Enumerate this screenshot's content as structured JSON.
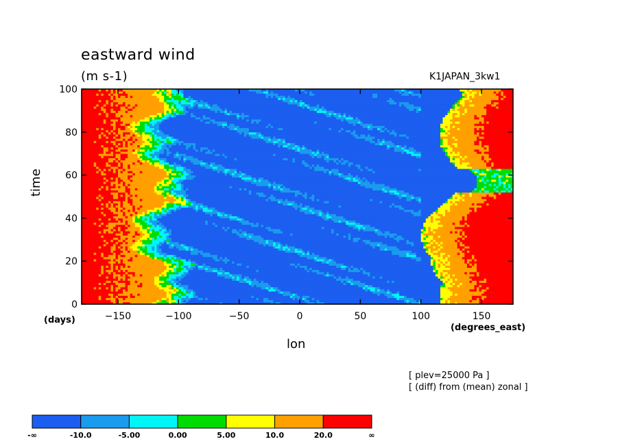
{
  "chart_data": {
    "type": "heatmap",
    "title": "eastward wind",
    "units": "(m s-1)",
    "dataset": "K1JAPAN_3kw1",
    "xlabel": "lon",
    "ylabel": "time",
    "x_units": "(degrees_east)",
    "y_units": "(days)",
    "xlim": [
      -180,
      176
    ],
    "ylim": [
      0,
      100
    ],
    "x_ticks": [
      -150,
      -100,
      -50,
      0,
      50,
      100,
      150
    ],
    "y_ticks": [
      0,
      20,
      40,
      60,
      80,
      100
    ],
    "notes": [
      "[ plev=25000 Pa ]",
      "[ (diff) from (mean) zonal ]"
    ],
    "colorbar": {
      "levels": [
        "-∞",
        "-10.0",
        "-5.00",
        "0.00",
        "5.00",
        "10.0",
        "20.0",
        "∞"
      ],
      "colors": [
        "#1b5ef0",
        "#1a9bee",
        "#00f5f5",
        "#00dc00",
        "#ffff00",
        "#ffa000",
        "#ff0000"
      ]
    },
    "field_pattern": [
      {
        "lon_range": [
          -180,
          -130
        ],
        "band": "red/orange (strong westerly anomaly)"
      },
      {
        "lon_range": [
          -110,
          90
        ],
        "band": "blue (easterly anomaly)"
      },
      {
        "lon_range": [
          110,
          176
        ],
        "band": "orange/red at days 0-50 and 65-100"
      }
    ]
  }
}
